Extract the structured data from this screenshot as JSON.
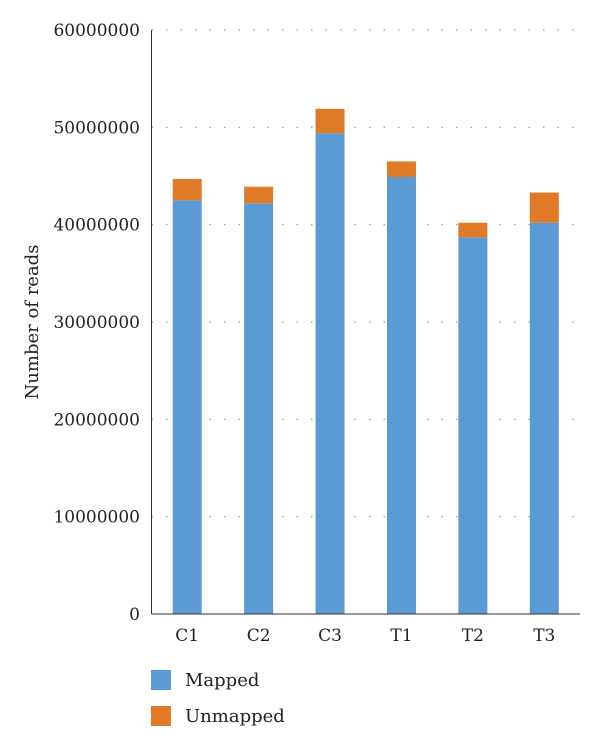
{
  "chart_data": {
    "type": "bar",
    "stacked": true,
    "categories": [
      "C1",
      "C2",
      "C3",
      "T1",
      "T2",
      "T3"
    ],
    "series": [
      {
        "name": "Mapped",
        "color": "#5b9bd5",
        "values": [
          42500000,
          42200000,
          49400000,
          44900000,
          38700000,
          40200000
        ]
      },
      {
        "name": "Unmapped",
        "color": "#e07a27",
        "values": [
          2200000,
          1700000,
          2500000,
          1600000,
          1500000,
          3100000
        ]
      }
    ],
    "ylabel": "Number of reads",
    "ylim": [
      0,
      60000000
    ],
    "yticks": [
      "0",
      "10000000",
      "20000000",
      "30000000",
      "40000000",
      "50000000",
      "60000000"
    ],
    "grid": "dotted-horizontal",
    "legend": "bottom-left"
  }
}
